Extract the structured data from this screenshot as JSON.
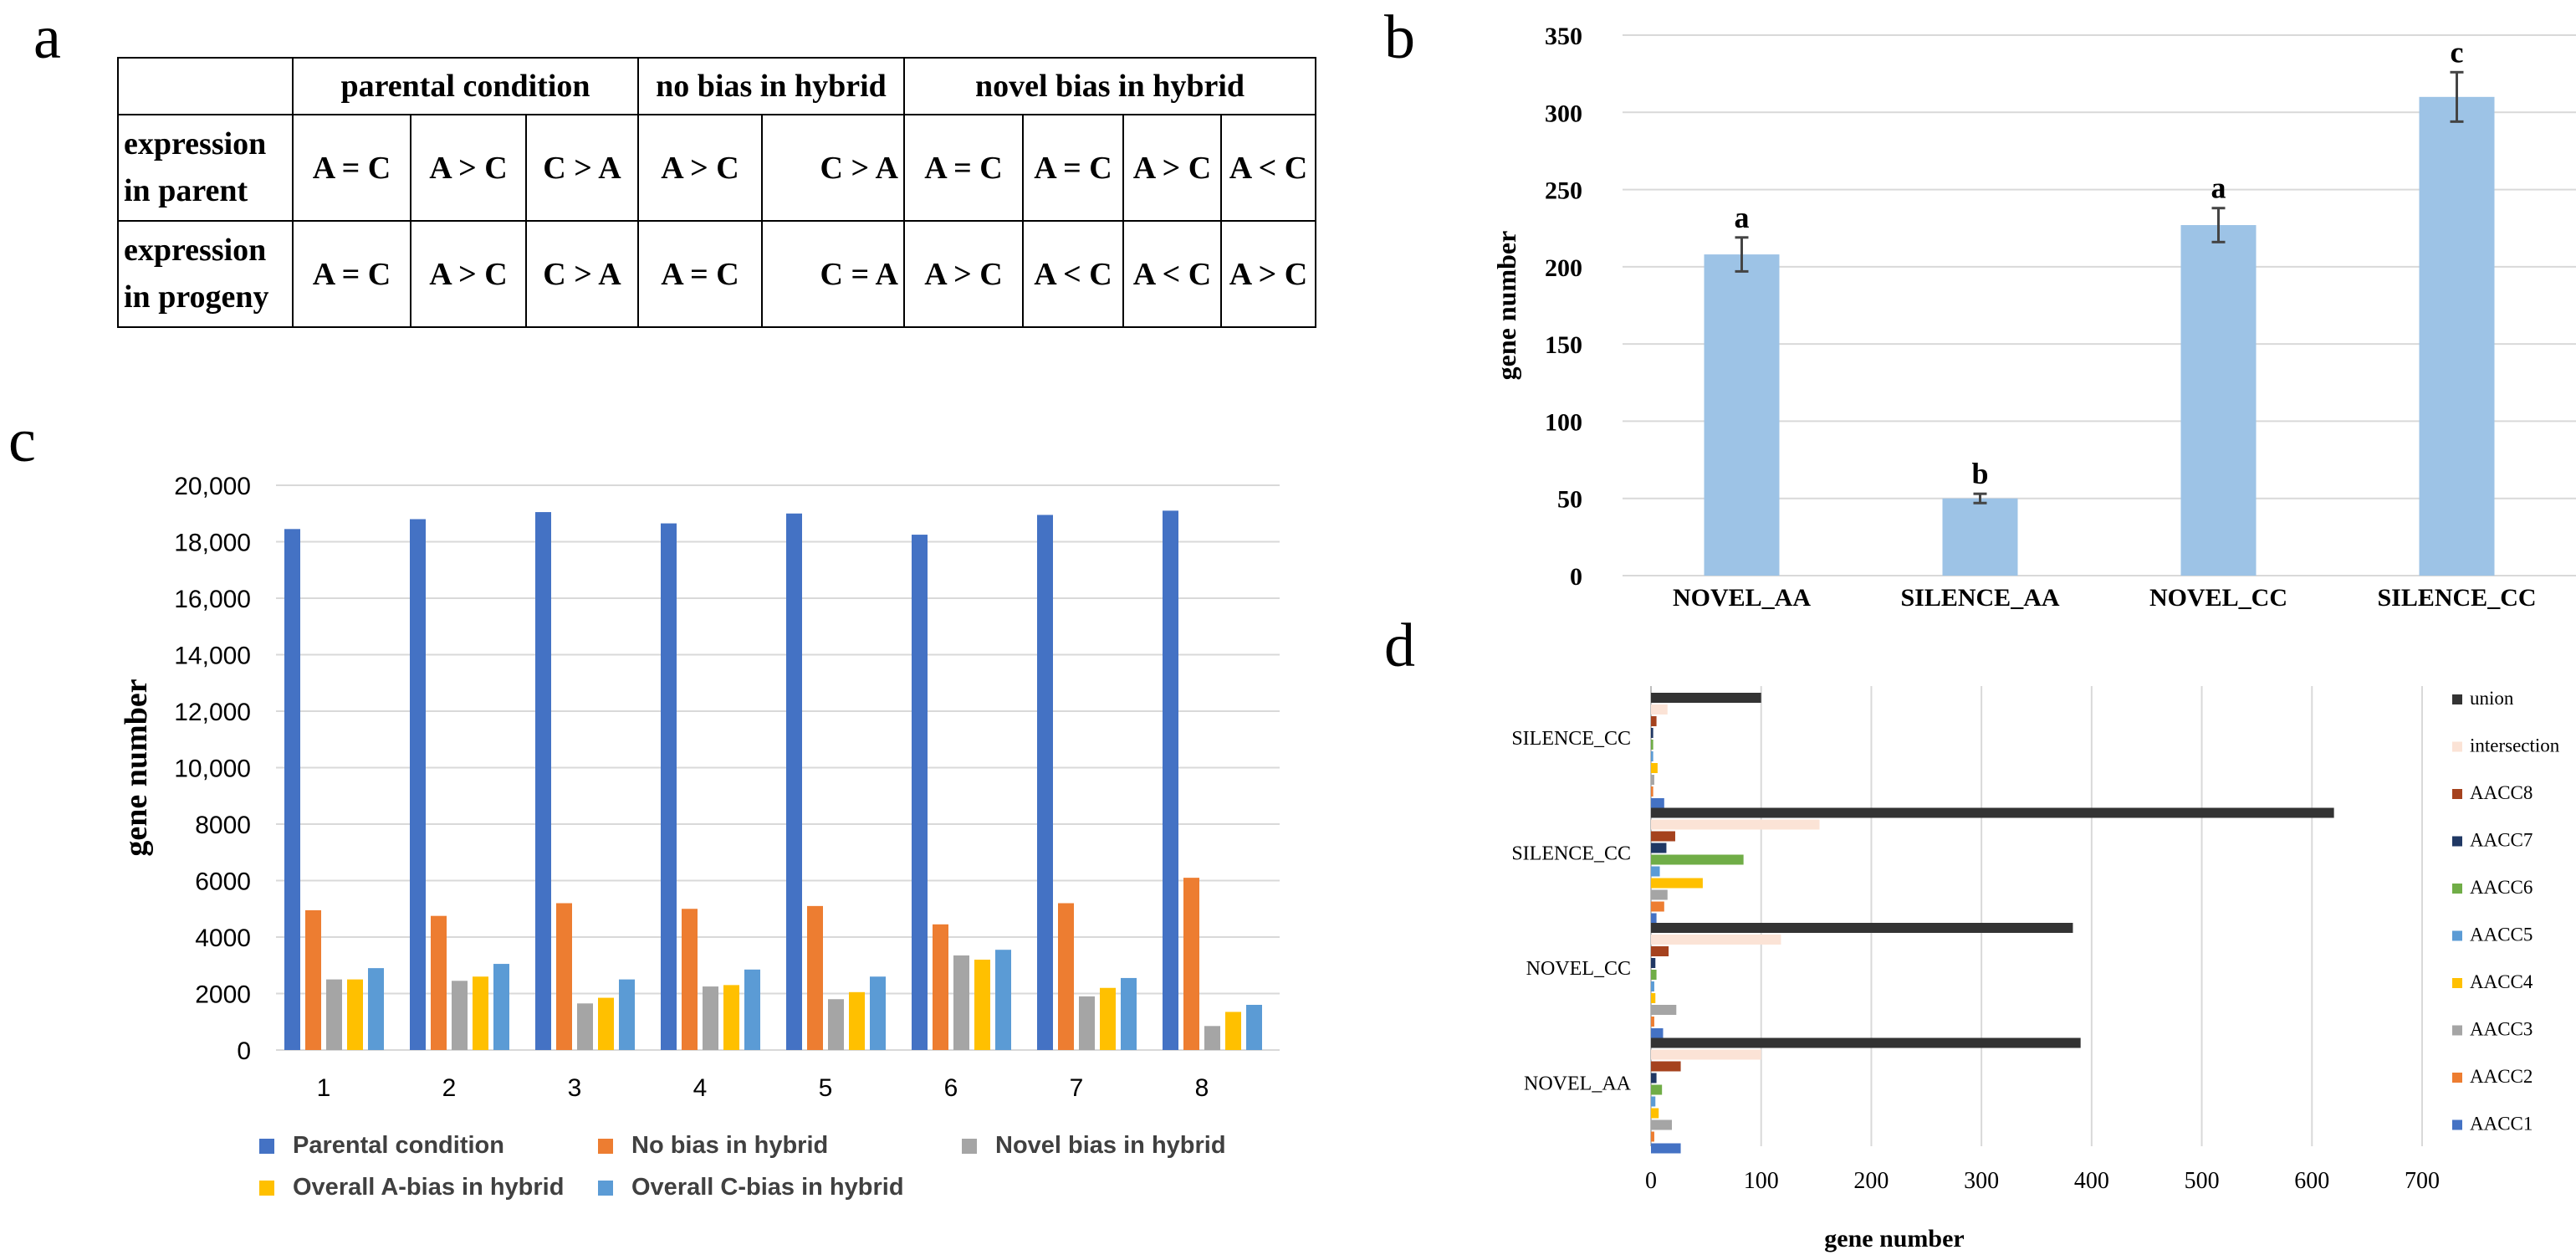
{
  "panels": {
    "a": "a",
    "b": "b",
    "c": "c",
    "d": "d"
  },
  "table": {
    "headers": [
      "",
      "parental condition",
      "no bias in hybrid",
      "novel bias in hybrid"
    ],
    "rows": [
      {
        "label": [
          "expression",
          "in parent"
        ],
        "cells": [
          "A = C",
          "A > C",
          "C > A",
          "A > C",
          "C > A",
          "A = C",
          "A = C",
          "A > C",
          "A < C"
        ]
      },
      {
        "label": [
          "expression",
          "in progeny"
        ],
        "cells": [
          "A = C",
          "A > C",
          "C > A",
          "A = C",
          "C = A",
          "A > C",
          "A < C",
          "A < C",
          "A > C"
        ]
      }
    ]
  },
  "chart_data": [
    {
      "type": "bar",
      "panel": "b",
      "categories": [
        "NOVEL_AA",
        "SILENCE_AA",
        "NOVEL_CC",
        "SILENCE_CC"
      ],
      "values": [
        208,
        50,
        227,
        310
      ],
      "errors": [
        11,
        3,
        11,
        16
      ],
      "significance_letters": [
        "a",
        "b",
        "a",
        "c"
      ],
      "ylabel": "gene number",
      "xlabel": "",
      "ylim": [
        0,
        350
      ],
      "yticks": [
        0,
        50,
        100,
        150,
        200,
        250,
        300,
        350
      ],
      "grid": true,
      "color": "#9dc3e6"
    },
    {
      "type": "bar",
      "panel": "c",
      "categories": [
        "1",
        "2",
        "3",
        "4",
        "5",
        "6",
        "7",
        "8"
      ],
      "series": [
        {
          "name": "Parental condition",
          "color": "#4472c4",
          "values": [
            18450,
            18800,
            19050,
            18650,
            19000,
            18250,
            18950,
            19100
          ]
        },
        {
          "name": "No bias in hybrid",
          "color": "#ed7d31",
          "values": [
            4950,
            4750,
            5200,
            5000,
            5100,
            4450,
            5200,
            6100
          ]
        },
        {
          "name": "Novel bias in hybrid",
          "color": "#a5a5a5",
          "values": [
            2500,
            2450,
            1650,
            2250,
            1800,
            3350,
            1900,
            850
          ]
        },
        {
          "name": "Overall A-bias in hybrid",
          "color": "#ffc000",
          "values": [
            2500,
            2600,
            1850,
            2300,
            2050,
            3200,
            2200,
            1350
          ]
        },
        {
          "name": "Overall C-bias in hybrid",
          "color": "#5b9bd5",
          "values": [
            2900,
            3050,
            2500,
            2850,
            2600,
            3550,
            2550,
            1600
          ]
        }
      ],
      "ylabel": "gene number",
      "xlabel": "",
      "ylim": [
        0,
        20000
      ],
      "yticks": [
        0,
        2000,
        4000,
        6000,
        8000,
        10000,
        12000,
        14000,
        16000,
        18000,
        20000
      ],
      "ytick_labels": [
        "0",
        "2000",
        "4000",
        "6000",
        "8000",
        "10,000",
        "12,000",
        "14,000",
        "16,000",
        "18,000",
        "20,000"
      ],
      "grid": true,
      "legend_position": "bottom"
    },
    {
      "type": "bar",
      "orientation": "horizontal",
      "panel": "d",
      "categories": [
        "SILENCE_CC",
        "SILENCE_CC",
        "NOVEL_CC",
        "NOVEL_AA"
      ],
      "series": [
        {
          "name": "union",
          "color": "#333333",
          "values": [
            100,
            620,
            383,
            390
          ]
        },
        {
          "name": "intersection",
          "color": "#fbe3d6",
          "values": [
            15,
            153,
            118,
            100
          ]
        },
        {
          "name": "AACC8",
          "color": "#a5421e",
          "values": [
            5,
            22,
            16,
            27
          ]
        },
        {
          "name": "AACC7",
          "color": "#203864",
          "values": [
            2,
            14,
            4,
            5
          ]
        },
        {
          "name": "AACC6",
          "color": "#70ad47",
          "values": [
            2,
            84,
            5,
            10
          ]
        },
        {
          "name": "AACC5",
          "color": "#5b9bd5",
          "values": [
            2,
            8,
            3,
            4
          ]
        },
        {
          "name": "AACC4",
          "color": "#ffc000",
          "values": [
            6,
            47,
            4,
            7
          ]
        },
        {
          "name": "AACC3",
          "color": "#a5a5a5",
          "values": [
            3,
            15,
            23,
            19
          ]
        },
        {
          "name": "AACC2",
          "color": "#ed7d31",
          "values": [
            2,
            12,
            3,
            3
          ]
        },
        {
          "name": "AACC1",
          "color": "#4472c4",
          "values": [
            12,
            5,
            11,
            27
          ]
        }
      ],
      "xlabel": "gene number",
      "ylabel": "",
      "xlim": [
        0,
        700
      ],
      "xticks": [
        0,
        100,
        200,
        300,
        400,
        500,
        600,
        700
      ],
      "grid": true,
      "legend_position": "right"
    }
  ]
}
